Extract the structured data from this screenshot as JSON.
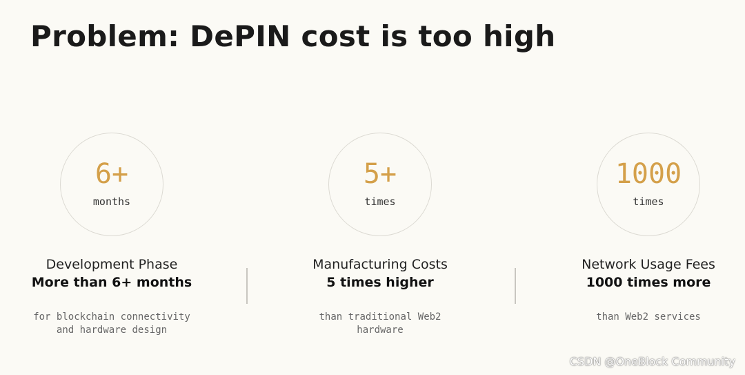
{
  "header": {
    "title": "Problem: DePIN cost is too high"
  },
  "cards": [
    {
      "number": "6+",
      "unit": "months",
      "heading": "Development Phase",
      "subheading": "More than 6+ months",
      "description": [
        "for blockchain connectivity",
        "and hardware design"
      ]
    },
    {
      "number": "5+",
      "unit": "times",
      "heading": "Manufacturing Costs",
      "subheading": "5 times higher",
      "description": [
        "than traditional Web2",
        "hardware"
      ]
    },
    {
      "number": "1000",
      "unit": "times",
      "heading": "Network Usage Fees",
      "subheading": "1000 times more",
      "description": [
        "than Web2 services"
      ]
    }
  ],
  "watermark": "CSDN @OneBlock Community"
}
